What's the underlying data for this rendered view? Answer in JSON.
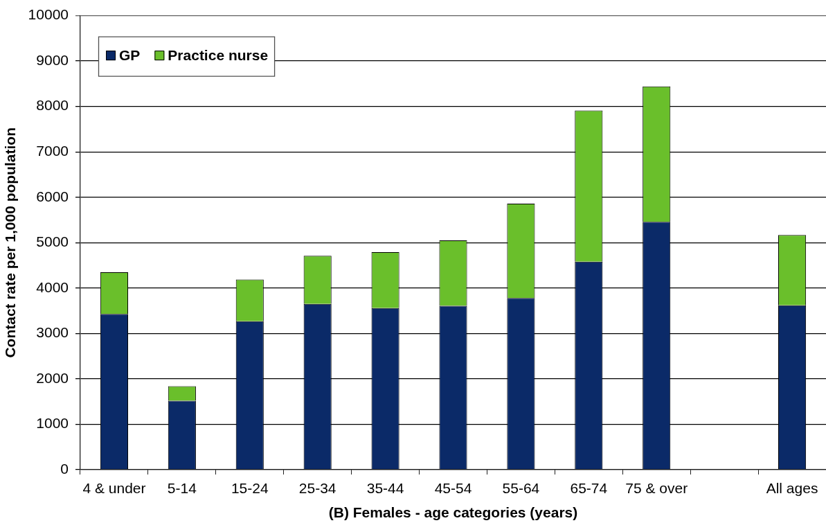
{
  "chart_data": {
    "type": "bar",
    "stacked": true,
    "xlabel": "(B) Females - age categories (years)",
    "ylabel": "Contact rate per 1,000 population",
    "categories": [
      "4 & under",
      "5-14",
      "15-24",
      "25-34",
      "35-44",
      "45-54",
      "55-64",
      "65-74",
      "75 & over",
      null,
      "All ages"
    ],
    "series": [
      {
        "name": "GP",
        "color": "#0b2a68",
        "values": [
          3430,
          1520,
          3270,
          3650,
          3560,
          3610,
          3780,
          4580,
          5460,
          null,
          3620
        ]
      },
      {
        "name": "Practice nurse",
        "color": "#6abf2b",
        "values": [
          920,
          320,
          920,
          1060,
          1230,
          1440,
          2080,
          3330,
          2980,
          null,
          1550
        ]
      }
    ],
    "ylim": [
      0,
      10000
    ],
    "yticks": [
      0,
      1000,
      2000,
      3000,
      4000,
      5000,
      6000,
      7000,
      8000,
      9000,
      10000
    ],
    "grid": "y",
    "legend": "top left"
  }
}
